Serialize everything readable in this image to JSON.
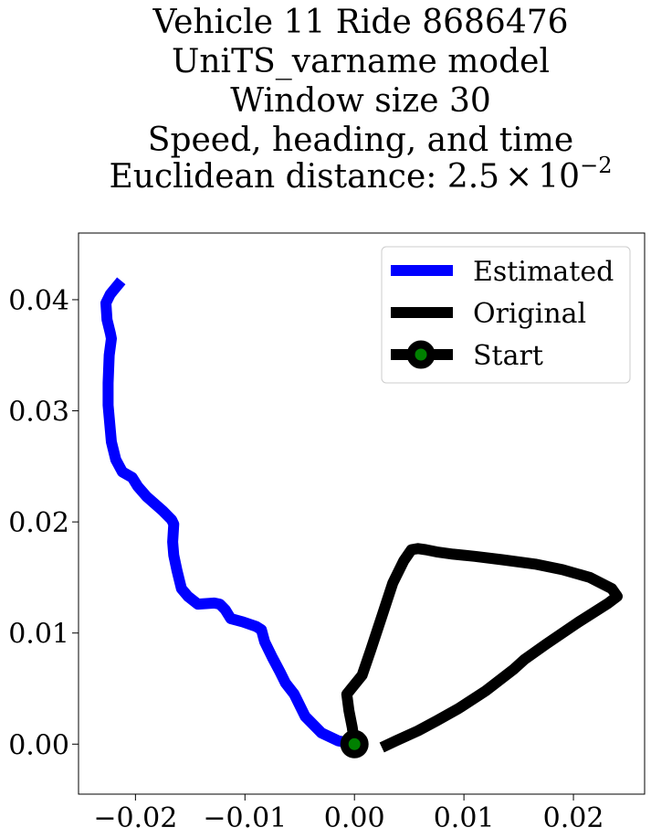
{
  "chart_data": {
    "type": "line",
    "title_lines": [
      "Vehicle 11 Ride 8686476",
      "UniTS_varname model",
      "Window size 30",
      "Speed, heading, and time"
    ],
    "title_distance": {
      "prefix": "Euclidean distance: ",
      "mantissa": "2.5",
      "times": "×",
      "base": "10",
      "exponent": "−2"
    },
    "xlabel": "",
    "ylabel": "",
    "xlim": [
      -0.0252,
      0.0265
    ],
    "ylim": [
      -0.0045,
      0.046
    ],
    "grid": false,
    "legend_position": "top-right",
    "x_ticks": [
      {
        "value": -0.02,
        "label": "−0.02"
      },
      {
        "value": -0.01,
        "label": "−0.01"
      },
      {
        "value": 0.0,
        "label": "0.00"
      },
      {
        "value": 0.01,
        "label": "0.01"
      },
      {
        "value": 0.02,
        "label": "0.02"
      }
    ],
    "y_ticks": [
      {
        "value": 0.0,
        "label": "0.00"
      },
      {
        "value": 0.01,
        "label": "0.01"
      },
      {
        "value": 0.02,
        "label": "0.02"
      },
      {
        "value": 0.03,
        "label": "0.03"
      },
      {
        "value": 0.04,
        "label": "0.04"
      }
    ],
    "series": [
      {
        "name": "Estimated",
        "color": "#0000ff",
        "points": [
          [
            0.0,
            0.0
          ],
          [
            -0.0015,
            0.0003
          ],
          [
            -0.003,
            0.001
          ],
          [
            -0.0045,
            0.0025
          ],
          [
            -0.0055,
            0.0045
          ],
          [
            -0.0063,
            0.0055
          ],
          [
            -0.0068,
            0.0065
          ],
          [
            -0.0075,
            0.0078
          ],
          [
            -0.0082,
            0.0092
          ],
          [
            -0.0085,
            0.0103
          ],
          [
            -0.009,
            0.0106
          ],
          [
            -0.0102,
            0.011
          ],
          [
            -0.0113,
            0.0113
          ],
          [
            -0.0118,
            0.0121
          ],
          [
            -0.0123,
            0.0126
          ],
          [
            -0.0128,
            0.0127
          ],
          [
            -0.0143,
            0.0126
          ],
          [
            -0.0152,
            0.0133
          ],
          [
            -0.0158,
            0.014
          ],
          [
            -0.0162,
            0.0156
          ],
          [
            -0.0165,
            0.017
          ],
          [
            -0.0166,
            0.0182
          ],
          [
            -0.0165,
            0.0198
          ],
          [
            -0.0167,
            0.0202
          ],
          [
            -0.0175,
            0.021
          ],
          [
            -0.019,
            0.0223
          ],
          [
            -0.0198,
            0.0232
          ],
          [
            -0.0203,
            0.024
          ],
          [
            -0.0212,
            0.0245
          ],
          [
            -0.0218,
            0.0256
          ],
          [
            -0.0222,
            0.0272
          ],
          [
            -0.0225,
            0.0305
          ],
          [
            -0.0225,
            0.0325
          ],
          [
            -0.0224,
            0.035
          ],
          [
            -0.0222,
            0.0365
          ],
          [
            -0.0223,
            0.037
          ],
          [
            -0.0226,
            0.0382
          ],
          [
            -0.0227,
            0.0397
          ],
          [
            -0.0223,
            0.0405
          ],
          [
            -0.0213,
            0.0417
          ]
        ]
      },
      {
        "name": "Original",
        "color": "#000000",
        "points": [
          [
            0.0025,
            -0.0003
          ],
          [
            0.0038,
            0.0003
          ],
          [
            0.0058,
            0.0012
          ],
          [
            0.0075,
            0.0021
          ],
          [
            0.0095,
            0.0032
          ],
          [
            0.012,
            0.0048
          ],
          [
            0.0145,
            0.0067
          ],
          [
            0.0155,
            0.0076
          ],
          [
            0.0175,
            0.009
          ],
          [
            0.0205,
            0.011
          ],
          [
            0.0232,
            0.0127
          ],
          [
            0.024,
            0.0133
          ],
          [
            0.0235,
            0.014
          ],
          [
            0.0215,
            0.015
          ],
          [
            0.019,
            0.0157
          ],
          [
            0.0165,
            0.0162
          ],
          [
            0.0135,
            0.0166
          ],
          [
            0.011,
            0.0169
          ],
          [
            0.009,
            0.0171
          ],
          [
            0.0075,
            0.0173
          ],
          [
            0.0065,
            0.0175
          ],
          [
            0.0058,
            0.0176
          ],
          [
            0.0052,
            0.0175
          ],
          [
            0.0045,
            0.0165
          ],
          [
            0.0035,
            0.0145
          ],
          [
            0.0025,
            0.0115
          ],
          [
            0.0015,
            0.0085
          ],
          [
            0.0007,
            0.0062
          ],
          [
            -0.0007,
            0.0045
          ],
          [
            -0.0005,
            0.003
          ],
          [
            -0.0002,
            0.0015
          ],
          [
            0.0,
            0.0
          ]
        ]
      }
    ],
    "start_marker": {
      "name": "Start",
      "x": 0.0,
      "y": 0.0,
      "edge_color": "#000000",
      "face_color": "#008000"
    },
    "legend": [
      {
        "label": "Estimated",
        "kind": "line",
        "color": "#0000ff"
      },
      {
        "label": "Original",
        "kind": "line",
        "color": "#000000"
      },
      {
        "label": "Start",
        "kind": "marker",
        "color": "#000000",
        "marker_face": "#008000"
      }
    ]
  }
}
